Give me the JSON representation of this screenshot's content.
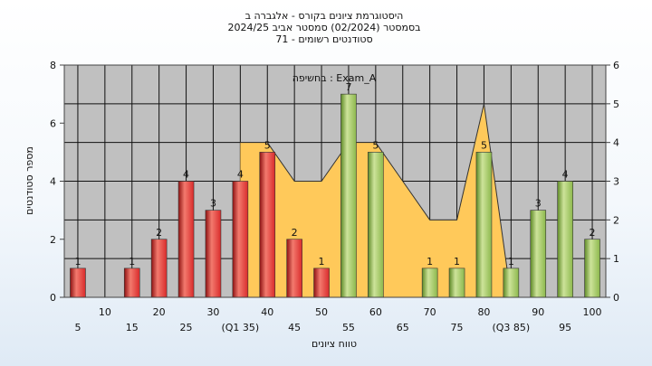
{
  "chart_data": {
    "type": "bar",
    "title_lines": [
      "היסטוגרמת ציונים בקורס - אלגברה ב",
      "בסמסטר  (02/2024)  סמסטר אביב 2024/25",
      "סטודנטים רשומים - 71"
    ],
    "exam_label": "בחשיפה : Exam_A",
    "xlabel": "טווח ציונים",
    "ylabel": "מספר סטודנטים",
    "x_ticks_row1": [
      "10",
      "20",
      "30",
      "40",
      "50",
      "60",
      "70",
      "80",
      "90",
      "100"
    ],
    "x_ticks_row2": [
      "5",
      "15",
      "25",
      "(Q1 35)",
      "45",
      "55",
      "65",
      "75",
      "(Q3 85)",
      "95"
    ],
    "xlim": [
      2.5,
      102.5
    ],
    "left_axis": {
      "ylim": [
        0,
        8
      ],
      "ticks": [
        "0",
        "2",
        "4",
        "6",
        "8"
      ]
    },
    "right_axis": {
      "ylim": [
        0,
        6
      ],
      "ticks": [
        "0",
        "1",
        "2",
        "3",
        "4",
        "5",
        "6"
      ]
    },
    "grid": true,
    "colors": {
      "fail": "#d92b2b",
      "pass": "#8cb84c",
      "area": "#ffc95a",
      "plot_bg": "#c0c0c0"
    },
    "series": [
      {
        "kind": "bars",
        "categories": [
          5,
          15,
          20,
          25,
          30,
          35,
          40,
          45,
          50,
          55,
          60,
          70,
          75,
          80,
          85,
          90,
          95,
          100
        ],
        "values": [
          1,
          1,
          2,
          4,
          3,
          4,
          5,
          2,
          1,
          7,
          5,
          1,
          1,
          5,
          1,
          3,
          4,
          2
        ],
        "labels": [
          "1",
          "1",
          "2",
          "4",
          "3",
          "4",
          "5",
          "2",
          "1",
          "7",
          "5",
          "1",
          "1",
          "5",
          "1",
          "3",
          "4",
          "2"
        ],
        "pass_threshold": 55
      },
      {
        "kind": "area",
        "axis": "right",
        "x": [
          35,
          40,
          45,
          50,
          55,
          60,
          65,
          70,
          75,
          80,
          85
        ],
        "y": [
          4,
          4,
          3,
          3,
          4,
          4,
          3,
          2,
          2,
          5,
          0
        ]
      }
    ]
  }
}
